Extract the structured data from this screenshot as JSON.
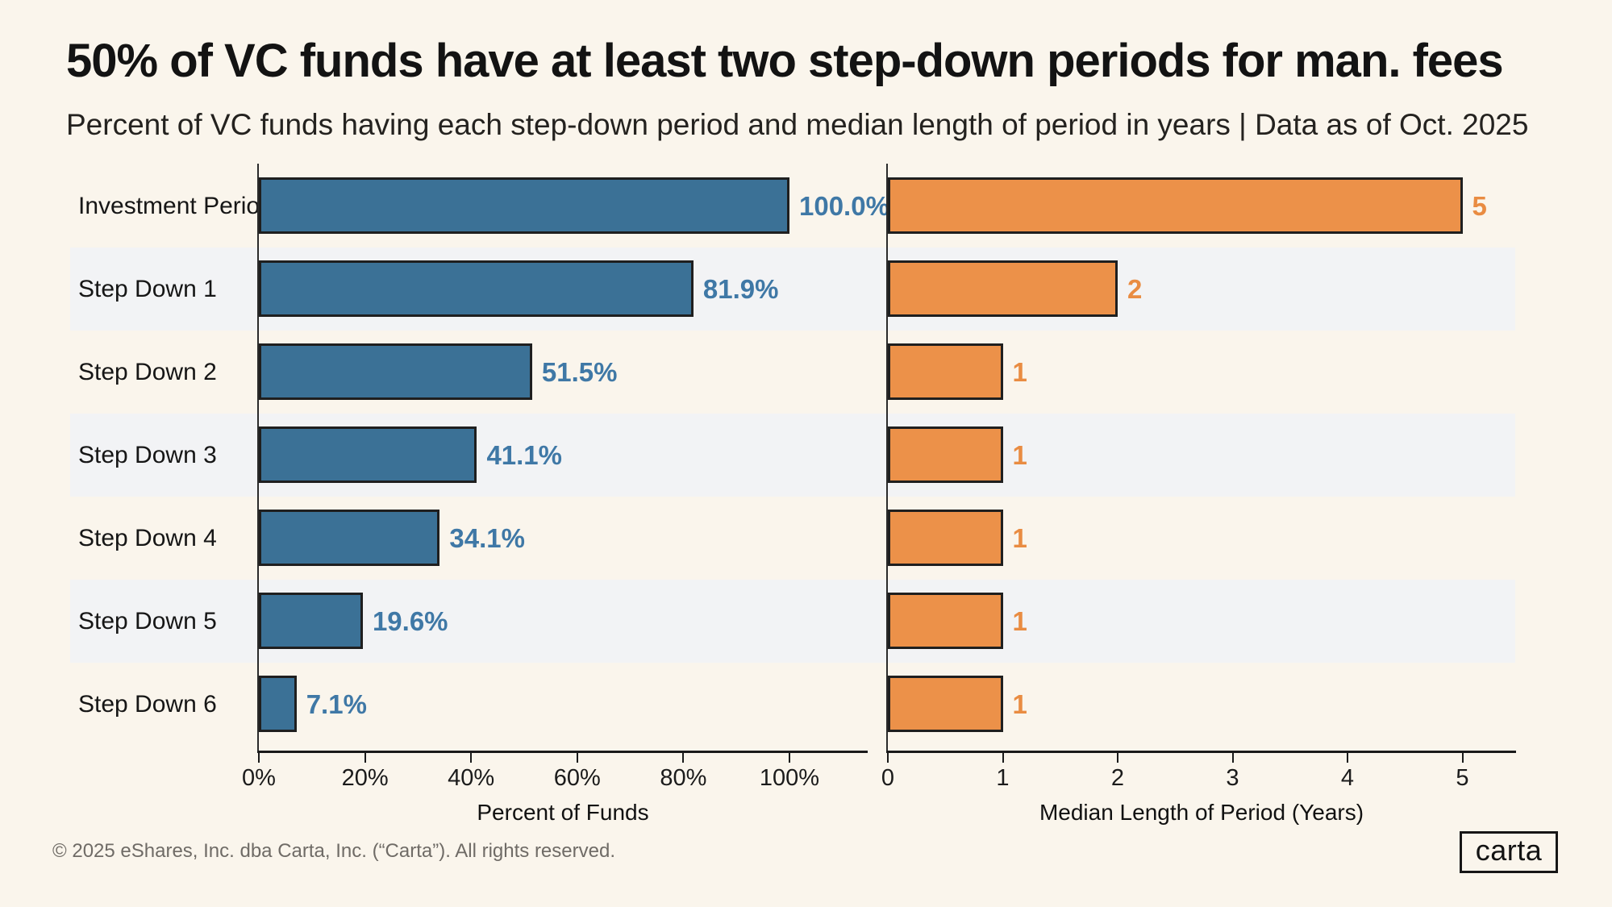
{
  "title": "50% of VC funds have at least two step-down periods for man. fees",
  "subtitle": "Percent of VC funds having each step-down period and median length of period in years | Data as of Oct. 2025",
  "footer": "© 2025 eShares, Inc. dba Carta, Inc. (“Carta”). All rights reserved.",
  "logo": {
    "text": "carta"
  },
  "colors": {
    "background": "#FAF5EC",
    "row_band": "#F2F3F5",
    "bar_border": "#1F1F1F",
    "blue_bar": "#3B7196",
    "blue_label": "#3F78A6",
    "orange_bar": "#EC9149",
    "orange_label": "#E98C42"
  },
  "chart_data": {
    "type": "bar",
    "orientation": "horizontal",
    "title": "50% of VC funds have at least two step-down periods for man. fees",
    "subtitle": "Percent of VC funds having each step-down period and median length of period in years | Data as of Oct. 2025",
    "categories": [
      "Investment Period",
      "Step Down 1",
      "Step Down 2",
      "Step Down 3",
      "Step Down 4",
      "Step Down 5",
      "Step Down 6"
    ],
    "grid": false,
    "striped_rows": [
      1,
      3,
      5
    ],
    "series": [
      {
        "name": "Percent of Funds",
        "xlabel": "Percent of Funds",
        "values": [
          100.0,
          81.9,
          51.5,
          41.1,
          34.1,
          19.6,
          7.1
        ],
        "labels": [
          "100.0%",
          "81.9%",
          "51.5%",
          "41.1%",
          "34.1%",
          "19.6%",
          "7.1%"
        ],
        "color": "#3B7196",
        "label_color": "#3F78A6",
        "axis_ticks": [
          "0%",
          "20%",
          "40%",
          "60%",
          "80%",
          "100%"
        ],
        "axis_tick_values": [
          0,
          20,
          40,
          60,
          80,
          100
        ],
        "xlim": [
          0,
          114.8
        ]
      },
      {
        "name": "Median Length of Period (Years)",
        "xlabel": "Median Length of Period (Years)",
        "values": [
          5,
          2,
          1,
          1,
          1,
          1,
          1
        ],
        "labels": [
          "5",
          "2",
          "1",
          "1",
          "1",
          "1",
          "1"
        ],
        "color": "#EC9149",
        "label_color": "#E98C42",
        "axis_ticks": [
          "0",
          "1",
          "2",
          "3",
          "4",
          "5"
        ],
        "axis_tick_values": [
          0,
          1,
          2,
          3,
          4,
          5
        ],
        "xlim": [
          0,
          5.47
        ]
      }
    ]
  }
}
